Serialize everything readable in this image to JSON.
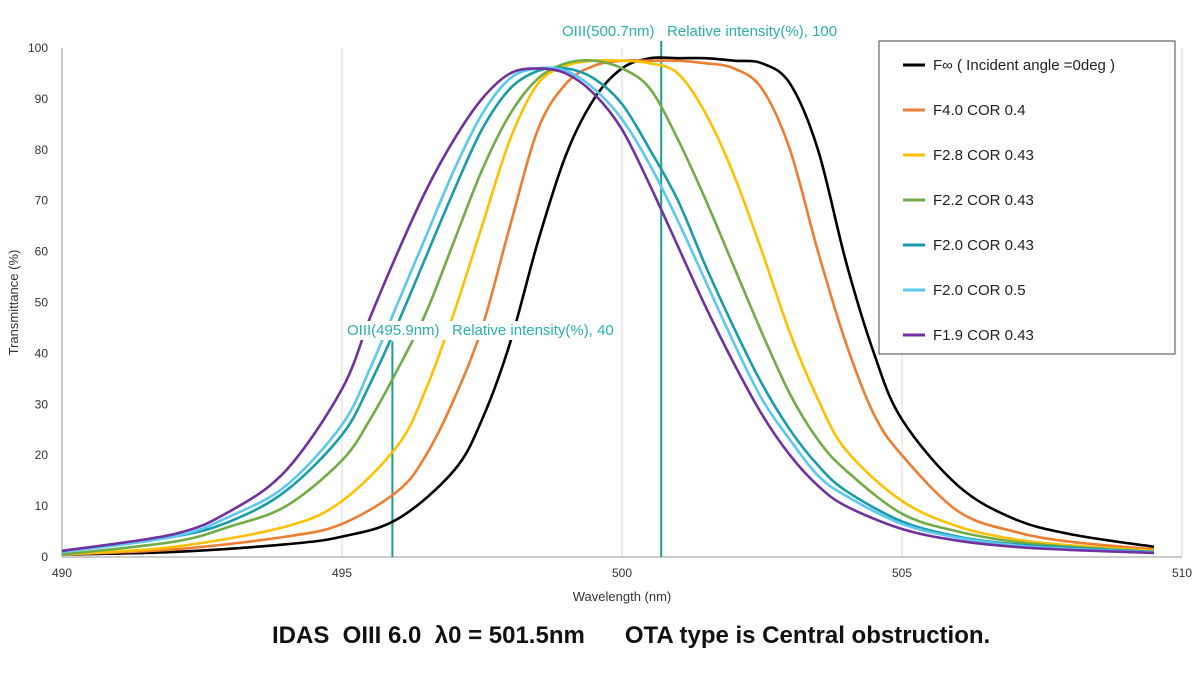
{
  "chart_data": {
    "type": "line",
    "xlabel": "Wavelength (nm)",
    "ylabel": "Transmittance (%)",
    "xlim": [
      490,
      510
    ],
    "ylim": [
      0,
      100
    ],
    "x_ticks": [
      490,
      495,
      500,
      505,
      510
    ],
    "y_ticks": [
      0,
      10,
      20,
      30,
      40,
      50,
      60,
      70,
      80,
      90,
      100
    ],
    "grid": "vertical",
    "legend_position": "top-right",
    "series": [
      {
        "name": "F∞ ( Incident angle =0deg )",
        "color": "#000000",
        "x": [
          490,
          492,
          494,
          495,
          496,
          497,
          497.5,
          498,
          498.5,
          499,
          499.5,
          500,
          500.5,
          501,
          501.5,
          502,
          502.5,
          503,
          503.5,
          504,
          504.5,
          505,
          506,
          507,
          508,
          509.5
        ],
        "y": [
          0.5,
          1,
          2.5,
          4,
          7.5,
          17,
          27,
          42,
          62,
          79,
          90,
          96,
          98,
          98,
          98,
          97.5,
          97,
          93,
          80,
          58,
          40,
          27,
          14,
          7.5,
          4.5,
          2
        ]
      },
      {
        "name": "F4.0 COR 0.4",
        "color": "#ed7d31",
        "x": [
          490,
          492,
          494,
          495,
          496,
          496.5,
          497,
          497.5,
          498,
          498.5,
          499,
          499.5,
          500,
          500.5,
          501,
          501.5,
          502,
          502.5,
          503,
          503.5,
          504,
          504.5,
          505,
          506,
          507,
          508,
          509.5
        ],
        "y": [
          0.5,
          1.5,
          4,
          6.5,
          13,
          20,
          31,
          45,
          65,
          84,
          93,
          96.5,
          97.5,
          97.5,
          97.5,
          97,
          96,
          92,
          80,
          60,
          42,
          28,
          20,
          9,
          5,
          3,
          1.5
        ]
      },
      {
        "name": "F2.8 COR 0.43",
        "color": "#ffc000",
        "x": [
          490,
          492,
          494,
          495,
          496,
          496.5,
          497,
          497.5,
          498,
          498.5,
          499,
          499.5,
          500,
          500.5,
          501,
          501.5,
          502,
          502.5,
          503,
          503.5,
          504,
          505,
          506,
          507,
          508,
          509.5
        ],
        "y": [
          0.5,
          2,
          6,
          11,
          22,
          33,
          48,
          65,
          82,
          93,
          96.5,
          97.5,
          97.5,
          97,
          95,
          87,
          75,
          60,
          44,
          31,
          21,
          11,
          6,
          3.5,
          2.3,
          1.2
        ]
      },
      {
        "name": "F2.2 COR 0.43",
        "color": "#70ad47",
        "x": [
          490,
          492,
          493,
          494,
          495,
          495.5,
          496,
          496.5,
          497,
          497.5,
          498,
          498.5,
          499,
          499.5,
          500,
          500.5,
          501,
          501.5,
          502,
          502.5,
          503,
          503.5,
          504,
          505,
          506,
          507,
          508,
          509.5
        ],
        "y": [
          0.5,
          3,
          6,
          10,
          19,
          27,
          37,
          48,
          62,
          76,
          87,
          94,
          97,
          97.5,
          96,
          92,
          82,
          70,
          57,
          44,
          32,
          23,
          17,
          8.5,
          5,
          3,
          2,
          1
        ]
      },
      {
        "name": "F2.0 COR 0.43",
        "color": "#1a9ba8",
        "x": [
          490,
          492,
          493,
          494,
          495,
          495.5,
          496,
          496.5,
          497,
          497.5,
          498,
          498.5,
          499,
          499.5,
          500,
          500.5,
          501,
          501.5,
          502,
          502.5,
          503,
          503.5,
          504,
          505,
          506,
          507,
          508,
          509.5
        ],
        "y": [
          1,
          4,
          7,
          13,
          24,
          34,
          46,
          59,
          72,
          84,
          92,
          95.5,
          96,
          94,
          89,
          80,
          70,
          57,
          45,
          34,
          25,
          18,
          13,
          7,
          4,
          2.5,
          1.8,
          1
        ]
      },
      {
        "name": "F2.0 COR 0.5",
        "color": "#5bc8f0",
        "x": [
          490,
          492,
          493,
          494,
          495,
          495.5,
          496,
          496.5,
          497,
          497.5,
          498,
          498.5,
          499,
          499.5,
          500,
          500.5,
          501,
          501.5,
          502,
          502.5,
          503,
          503.5,
          504,
          505,
          506,
          507,
          508,
          509.5
        ],
        "y": [
          1,
          4,
          8,
          14,
          26,
          37,
          50,
          63,
          76,
          87,
          94,
          96,
          95.5,
          92,
          86,
          77,
          66,
          54,
          42,
          31,
          23,
          16,
          12,
          6.5,
          3.8,
          2.3,
          1.6,
          0.9
        ]
      },
      {
        "name": "F1.9 COR 0.43",
        "color": "#7030a0",
        "x": [
          490,
          492,
          493,
          494,
          495,
          495.5,
          496,
          496.5,
          497,
          497.5,
          498,
          498.5,
          499,
          499.5,
          500,
          500.5,
          501,
          501.5,
          502,
          502.5,
          503,
          503.5,
          504,
          505,
          506,
          507,
          508,
          509.5
        ],
        "y": [
          1.2,
          4.5,
          9,
          17,
          33,
          47,
          60,
          72,
          82,
          90,
          95,
          96,
          95,
          91,
          84,
          73,
          61,
          49,
          38,
          28,
          20,
          14,
          10,
          5.5,
          3.2,
          2,
          1.4,
          0.8
        ]
      }
    ],
    "annotations": [
      {
        "text": "OIII(500.7nm)   Relative intensity(%), 100",
        "x": 500.7,
        "y": 100,
        "color": "#2ab0b0"
      },
      {
        "text": "OIII(495.9nm)   Relative intensity(%), 40",
        "x": 495.9,
        "y": 40,
        "color": "#2ab0b0"
      }
    ]
  },
  "footer": {
    "title": "IDAS  OIII 6.0  λ0 = 501.5nm      OTA type is Central obstruction."
  }
}
